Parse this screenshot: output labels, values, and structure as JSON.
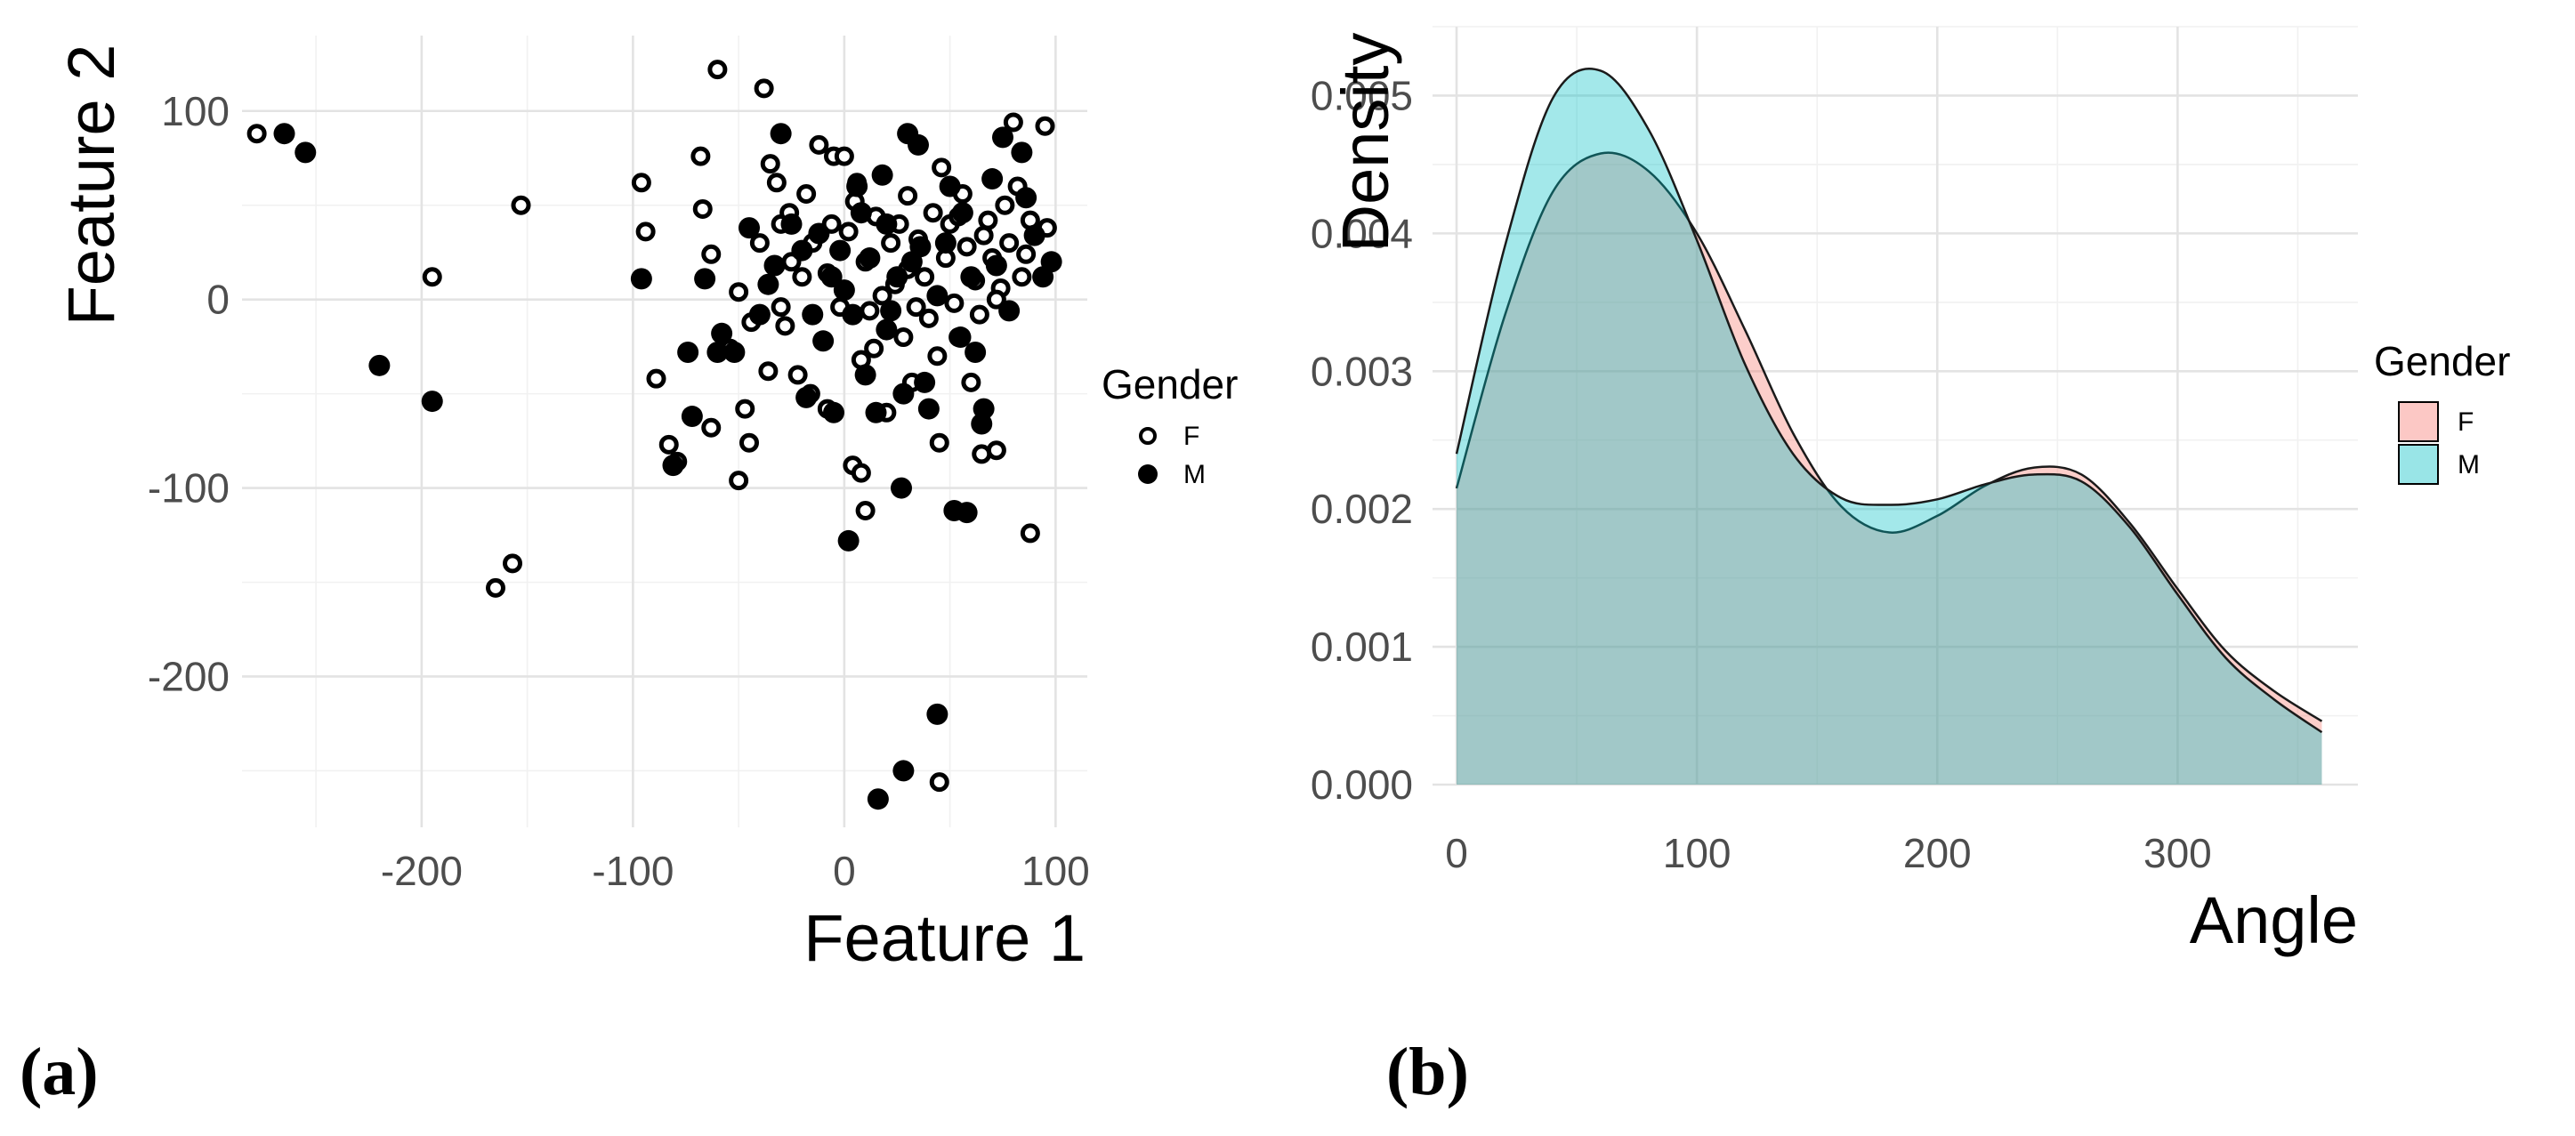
{
  "chart_data": [
    {
      "type": "scatter",
      "panel_label": "(a)",
      "title": "",
      "xlabel": "Feature 1",
      "ylabel": "Feature 2",
      "xlim": [
        -285,
        115
      ],
      "ylim": [
        -280,
        140
      ],
      "x_ticks": [
        -200,
        -100,
        0,
        100
      ],
      "y_ticks": [
        -200,
        -100,
        0,
        100
      ],
      "tick_labels_x": [
        "-200",
        "-100",
        "0",
        "100"
      ],
      "tick_labels_y": [
        "-200",
        "-100",
        "0",
        "100"
      ],
      "grid": true,
      "legend": {
        "title": "Gender",
        "placement": "right",
        "entries": [
          "F",
          "M"
        ]
      },
      "series": [
        {
          "name": "F",
          "marker": "open-circle",
          "points": [
            [
              -278,
              88
            ],
            [
              -195,
              12
            ],
            [
              -153,
              50
            ],
            [
              -165,
              -153
            ],
            [
              -157,
              -140
            ],
            [
              -96,
              62
            ],
            [
              -94,
              36
            ],
            [
              -89,
              -42
            ],
            [
              -83,
              -77
            ],
            [
              -79,
              -86
            ],
            [
              -68,
              76
            ],
            [
              -67,
              48
            ],
            [
              -63,
              24
            ],
            [
              -63,
              -68
            ],
            [
              -60,
              122
            ],
            [
              -50,
              -96
            ],
            [
              -47,
              -58
            ],
            [
              -45,
              -76
            ],
            [
              -38,
              112
            ],
            [
              -35,
              72
            ],
            [
              -32,
              62
            ],
            [
              -30,
              40
            ],
            [
              -28,
              -14
            ],
            [
              -25,
              20
            ],
            [
              -22,
              -40
            ],
            [
              -18,
              56
            ],
            [
              -15,
              30
            ],
            [
              -12,
              82
            ],
            [
              -10,
              -22
            ],
            [
              -8,
              14
            ],
            [
              -5,
              76
            ],
            [
              0,
              76
            ],
            [
              -2,
              -4
            ],
            [
              2,
              36
            ],
            [
              5,
              52
            ],
            [
              8,
              -32
            ],
            [
              10,
              20
            ],
            [
              12,
              -6
            ],
            [
              15,
              44
            ],
            [
              18,
              2
            ],
            [
              20,
              -60
            ],
            [
              4,
              -88
            ],
            [
              8,
              -92
            ],
            [
              10,
              -112
            ],
            [
              22,
              30
            ],
            [
              24,
              8
            ],
            [
              28,
              -20
            ],
            [
              30,
              55
            ],
            [
              32,
              -44
            ],
            [
              35,
              32
            ],
            [
              38,
              12
            ],
            [
              40,
              -10
            ],
            [
              42,
              46
            ],
            [
              44,
              -30
            ],
            [
              45,
              -76
            ],
            [
              46,
              70
            ],
            [
              48,
              22
            ],
            [
              50,
              40
            ],
            [
              52,
              -2
            ],
            [
              54,
              -20
            ],
            [
              56,
              56
            ],
            [
              58,
              28
            ],
            [
              60,
              -44
            ],
            [
              62,
              10
            ],
            [
              64,
              -8
            ],
            [
              65,
              -82
            ],
            [
              68,
              42
            ],
            [
              70,
              22
            ],
            [
              72,
              -80
            ],
            [
              74,
              6
            ],
            [
              76,
              50
            ],
            [
              78,
              30
            ],
            [
              80,
              94
            ],
            [
              82,
              60
            ],
            [
              84,
              12
            ],
            [
              86,
              24
            ],
            [
              88,
              42
            ],
            [
              88,
              -124
            ],
            [
              95,
              92
            ],
            [
              96,
              38
            ],
            [
              45,
              -256
            ],
            [
              -40,
              30
            ],
            [
              -44,
              -12
            ],
            [
              -26,
              46
            ],
            [
              -16,
              -50
            ],
            [
              14,
              -26
            ],
            [
              -36,
              -38
            ],
            [
              26,
              40
            ],
            [
              34,
              -4
            ],
            [
              -6,
              40
            ],
            [
              6,
              62
            ],
            [
              -50,
              4
            ],
            [
              -54,
              -26
            ],
            [
              66,
              34
            ],
            [
              72,
              0
            ],
            [
              -20,
              12
            ],
            [
              30,
              16
            ],
            [
              -30,
              -4
            ],
            [
              54,
              44
            ],
            [
              -8,
              -58
            ]
          ]
        },
        {
          "name": "M",
          "marker": "filled-circle",
          "points": [
            [
              -265,
              88
            ],
            [
              -255,
              78
            ],
            [
              -220,
              -35
            ],
            [
              -195,
              -54
            ],
            [
              -96,
              11
            ],
            [
              -81,
              -88
            ],
            [
              -74,
              -28
            ],
            [
              -72,
              -62
            ],
            [
              -66,
              11
            ],
            [
              -60,
              -28
            ],
            [
              -52,
              -28
            ],
            [
              -45,
              38
            ],
            [
              -40,
              -8
            ],
            [
              -33,
              18
            ],
            [
              -30,
              88
            ],
            [
              -25,
              40
            ],
            [
              -20,
              26
            ],
            [
              -18,
              -52
            ],
            [
              -15,
              -8
            ],
            [
              -12,
              35
            ],
            [
              -10,
              -22
            ],
            [
              -6,
              12
            ],
            [
              -5,
              -60
            ],
            [
              0,
              5
            ],
            [
              2,
              -128
            ],
            [
              4,
              -8
            ],
            [
              6,
              60
            ],
            [
              8,
              46
            ],
            [
              10,
              -40
            ],
            [
              12,
              22
            ],
            [
              15,
              -60
            ],
            [
              18,
              66
            ],
            [
              20,
              40
            ],
            [
              22,
              -6
            ],
            [
              25,
              12
            ],
            [
              27,
              -100
            ],
            [
              28,
              -50
            ],
            [
              30,
              88
            ],
            [
              35,
              82
            ],
            [
              36,
              28
            ],
            [
              38,
              -44
            ],
            [
              40,
              -58
            ],
            [
              44,
              -220
            ],
            [
              48,
              30
            ],
            [
              50,
              60
            ],
            [
              52,
              -112
            ],
            [
              55,
              -20
            ],
            [
              56,
              46
            ],
            [
              58,
              -113
            ],
            [
              60,
              12
            ],
            [
              62,
              -28
            ],
            [
              65,
              -66
            ],
            [
              66,
              -58
            ],
            [
              70,
              64
            ],
            [
              72,
              18
            ],
            [
              75,
              86
            ],
            [
              78,
              -6
            ],
            [
              84,
              78
            ],
            [
              86,
              54
            ],
            [
              90,
              34
            ],
            [
              94,
              12
            ],
            [
              98,
              20
            ],
            [
              28,
              -250
            ],
            [
              16,
              -265
            ],
            [
              -58,
              -18
            ],
            [
              -2,
              26
            ],
            [
              44,
              2
            ],
            [
              20,
              -16
            ],
            [
              -36,
              8
            ],
            [
              32,
              20
            ]
          ]
        }
      ]
    },
    {
      "type": "area",
      "panel_label": "(b)",
      "title": "",
      "xlabel": "Angle",
      "ylabel": "Density",
      "xlim": [
        -10,
        375
      ],
      "ylim": [
        0,
        0.0055
      ],
      "x_ticks": [
        0,
        100,
        200,
        300
      ],
      "y_ticks": [
        0,
        0.001,
        0.002,
        0.003,
        0.004,
        0.005
      ],
      "tick_labels_x": [
        "0",
        "100",
        "200",
        "300"
      ],
      "tick_labels_y": [
        "0.000",
        "0.001",
        "0.002",
        "0.003",
        "0.004",
        "0.005"
      ],
      "grid": true,
      "legend": {
        "title": "Gender",
        "placement": "right",
        "entries": [
          "F",
          "M"
        ]
      },
      "series": [
        {
          "name": "F",
          "color": "#F8766D",
          "x": [
            0,
            20,
            40,
            60,
            80,
            100,
            120,
            140,
            160,
            180,
            200,
            220,
            240,
            260,
            280,
            300,
            320,
            340,
            360
          ],
          "y": [
            0.00215,
            0.0034,
            0.0043,
            0.00458,
            0.00445,
            0.004,
            0.0033,
            0.00255,
            0.00202,
            0.00183,
            0.00195,
            0.00217,
            0.0023,
            0.00225,
            0.0019,
            0.00142,
            0.00097,
            0.00068,
            0.00046
          ]
        },
        {
          "name": "M",
          "color": "#00BFC4",
          "x": [
            0,
            20,
            40,
            60,
            80,
            100,
            120,
            140,
            160,
            180,
            200,
            220,
            240,
            260,
            280,
            300,
            320,
            340,
            360
          ],
          "y": [
            0.0024,
            0.0039,
            0.00498,
            0.00518,
            0.00475,
            0.00395,
            0.00305,
            0.0024,
            0.00208,
            0.00203,
            0.00207,
            0.00218,
            0.00225,
            0.0022,
            0.00187,
            0.00138,
            0.00092,
            0.00062,
            0.00038
          ]
        }
      ]
    }
  ]
}
